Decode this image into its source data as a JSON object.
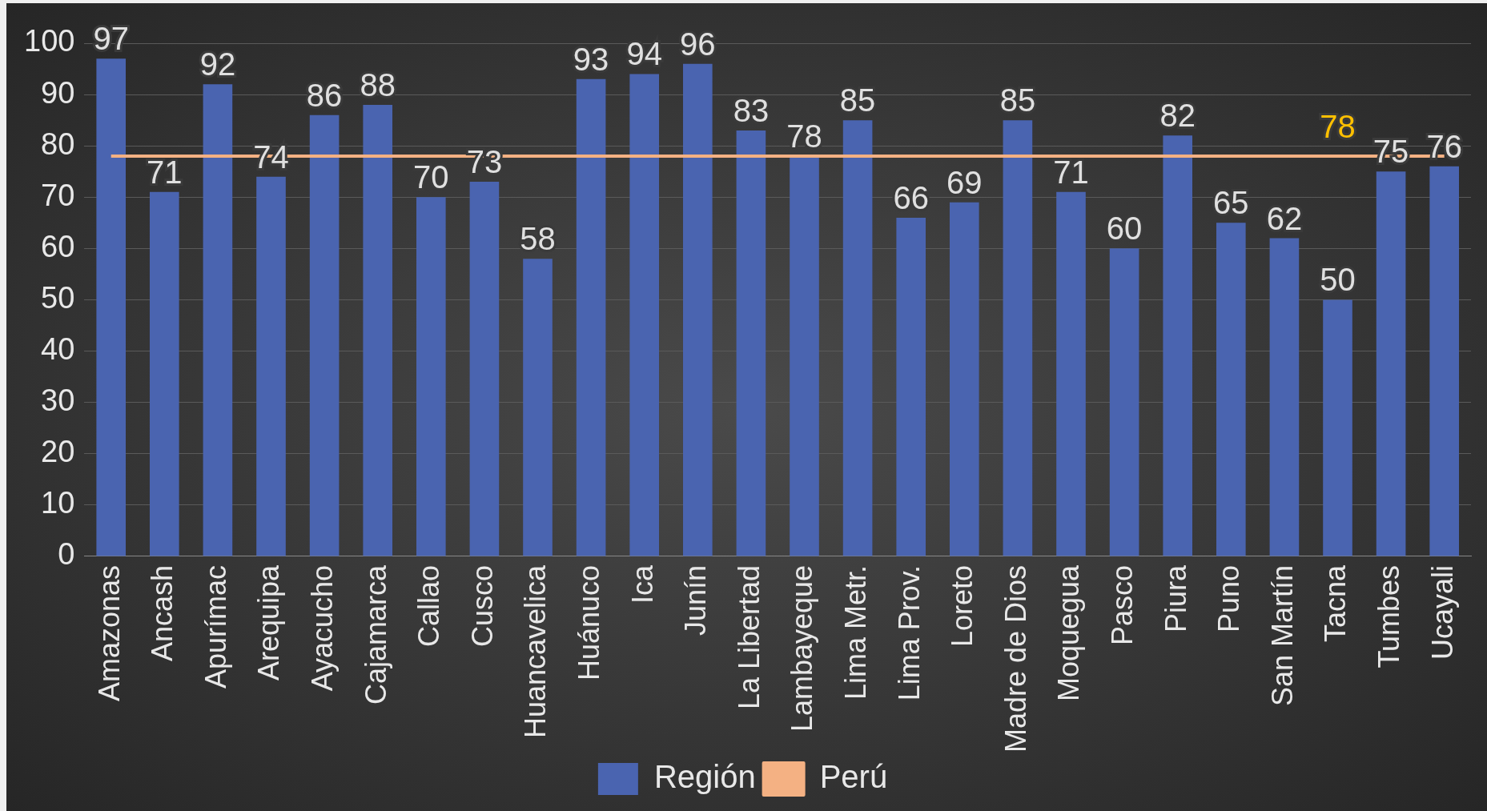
{
  "chart_data": {
    "type": "bar",
    "categories": [
      "Amazonas",
      "Ancash",
      "Apurímac",
      "Arequipa",
      "Ayacucho",
      "Cajamarca",
      "Callao",
      "Cusco",
      "Huancavelica",
      "Huánuco",
      "Ica",
      "Junín",
      "La Libertad",
      "Lambayeque",
      "Lima Metr.",
      "Lima Prov.",
      "Loreto",
      "Madre de Dios",
      "Moquegua",
      "Pasco",
      "Piura",
      "Puno",
      "San Martín",
      "Tacna",
      "Tumbes",
      "Ucayali"
    ],
    "series": [
      {
        "name": "Región",
        "color": "#4a64b0",
        "values": [
          97,
          71,
          92,
          74,
          86,
          88,
          70,
          73,
          58,
          93,
          94,
          96,
          83,
          78,
          85,
          66,
          69,
          85,
          71,
          60,
          82,
          65,
          62,
          50,
          75,
          76
        ],
        "value_labels": [
          "97",
          "71",
          "92",
          "74",
          "86",
          "88",
          "70",
          "73",
          "58",
          "93",
          "94",
          "96",
          "83",
          "78",
          "85",
          "66",
          "69",
          "85",
          "71",
          "60",
          "82",
          "65",
          "62",
          "50",
          "75",
          "76"
        ]
      },
      {
        "name": "Perú",
        "type": "line",
        "color": "#f4b183",
        "values": [
          78,
          78,
          78,
          78,
          78,
          78,
          78,
          78,
          78,
          78,
          78,
          78,
          78,
          78,
          78,
          78,
          78,
          78,
          78,
          78,
          78,
          78,
          78,
          78,
          78,
          78
        ],
        "value_labels": [
          null,
          null,
          null,
          null,
          null,
          null,
          null,
          null,
          null,
          null,
          null,
          null,
          null,
          null,
          null,
          null,
          null,
          null,
          null,
          null,
          null,
          null,
          null,
          "78",
          null,
          null
        ]
      }
    ],
    "ylim": [
      0,
      100
    ],
    "yticks": [
      0,
      10,
      20,
      30,
      40,
      50,
      60,
      70,
      80,
      90,
      100
    ],
    "grid": "y",
    "legend": "bottom",
    "marker": "none"
  }
}
